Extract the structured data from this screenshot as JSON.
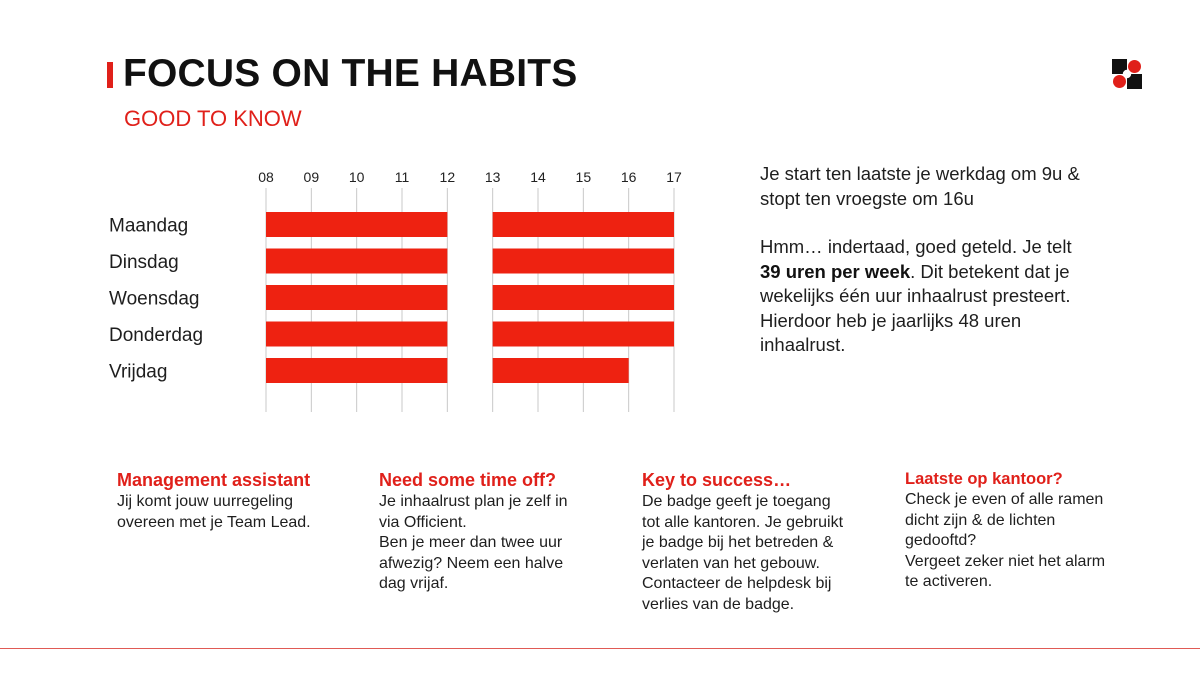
{
  "header": {
    "title": "FOCUS ON THE HABITS",
    "subtitle": "GOOD TO KNOW"
  },
  "colors": {
    "accent": "#e0201a",
    "bar": "#ee2211",
    "grid": "#c8c8c8",
    "text": "#1e1e1e"
  },
  "logo_icon": "brand-logo-icon",
  "chart_data": {
    "type": "bar",
    "orientation": "horizontal-timeline",
    "x_ticks": [
      "08",
      "09",
      "10",
      "11",
      "12",
      "13",
      "14",
      "15",
      "16",
      "17"
    ],
    "xlim": [
      8,
      17
    ],
    "categories": [
      "Maandag",
      "Dinsdag",
      "Woensdag",
      "Donderdag",
      "Vrijdag"
    ],
    "series": [
      {
        "category": "Maandag",
        "segments": [
          [
            8,
            12
          ],
          [
            13,
            17
          ]
        ]
      },
      {
        "category": "Dinsdag",
        "segments": [
          [
            8,
            12
          ],
          [
            13,
            17
          ]
        ]
      },
      {
        "category": "Woensdag",
        "segments": [
          [
            8,
            12
          ],
          [
            13,
            17
          ]
        ]
      },
      {
        "category": "Donderdag",
        "segments": [
          [
            8,
            12
          ],
          [
            13,
            17
          ]
        ]
      },
      {
        "category": "Vrijdag",
        "segments": [
          [
            8,
            12
          ],
          [
            13,
            16
          ]
        ]
      }
    ],
    "grid": true,
    "legend": "none"
  },
  "intro": {
    "p1": "Je start ten laatste je werkdag om 9u & stopt ten vroegste om 16u",
    "p2_pre": "Hmm… indertaad, goed geteld. Je telt ",
    "p2_bold": "39 uren per week",
    "p2_post": ". Dit betekent dat je wekelijks één uur inhaalrust presteert. Hierdoor heb je jaarlijks 48 uren inhaalrust."
  },
  "cards": [
    {
      "title": "Management assistant",
      "lines": [
        "Jij komt jouw uurregeling",
        "overeen met je Team Lead."
      ]
    },
    {
      "title": "Need some time off?",
      "lines": [
        "Je inhaalrust plan je zelf in",
        "via Officient.",
        "Ben je meer dan twee uur",
        "afwezig? Neem een halve",
        "dag vrijaf."
      ]
    },
    {
      "title": "Key to success…",
      "lines": [
        "De badge geeft je toegang",
        "tot alle kantoren. Je gebruikt",
        "je badge bij het betreden &",
        "verlaten van het gebouw.",
        "Contacteer de helpdesk bij",
        "verlies van de badge."
      ]
    },
    {
      "title": "Laatste op kantoor?",
      "lines": [
        "Check je even of alle ramen",
        "dicht zijn & de lichten",
        "gedooftd?",
        "Vergeet zeker niet het alarm",
        "te activeren."
      ]
    }
  ]
}
